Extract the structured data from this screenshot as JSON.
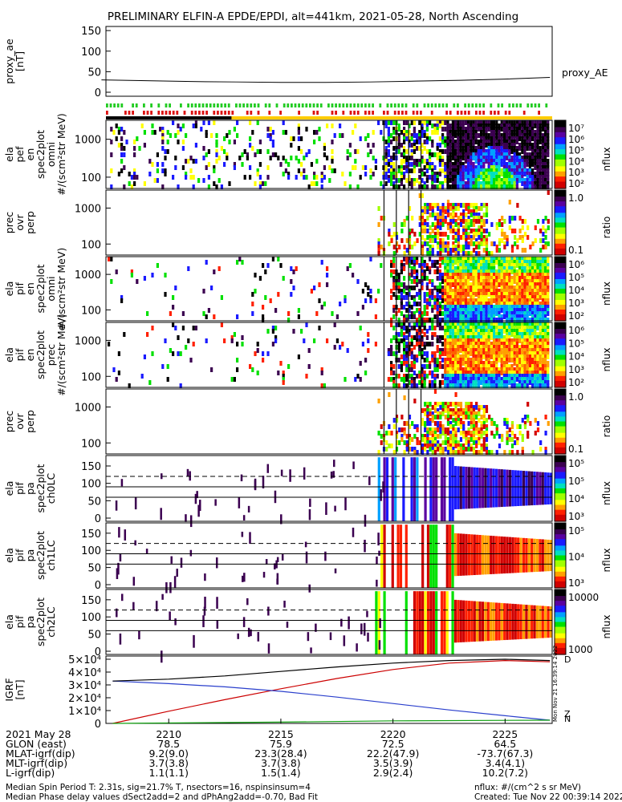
{
  "title": "PRELIMINARY ELFIN-A EPDE/EPDI, alt=441km, 2021-05-28, North Ascending",
  "chart_data": [
    {
      "id": "proxy_ae",
      "type": "line",
      "ylabel": [
        "proxy_ae",
        "[nT]"
      ],
      "yticks": [
        "150",
        "100",
        "50",
        "0"
      ],
      "ylim": [
        0,
        160
      ],
      "series": [
        {
          "name": "proxy_AE",
          "x": [
            2207,
            2209,
            2211,
            2213,
            2215,
            2217,
            2219,
            2221,
            2223,
            2225,
            2227
          ],
          "y": [
            30,
            28,
            26,
            25,
            24,
            24,
            25,
            27,
            29,
            32,
            36
          ]
        }
      ]
    },
    {
      "id": "elx_pef_en_spec2plot_omni",
      "type": "heatmap",
      "ylabel": [
        "ela",
        "pef",
        "en",
        "spec2plot",
        "omni",
        "#/(scm²str MeV)"
      ],
      "yticks": [
        "1000",
        "100"
      ],
      "yscale": "log",
      "colorbar": {
        "label": "nflux",
        "ticks": [
          "10⁷",
          "10⁶",
          "10⁵",
          "10⁴",
          "10³",
          "10²"
        ]
      }
    },
    {
      "id": "prec_ovr_perp_1",
      "type": "heatmap",
      "ylabel": [
        "prec",
        "ovr",
        "perp"
      ],
      "yticks": [
        "1000",
        "100"
      ],
      "yscale": "log",
      "colorbar": {
        "label": "ratio",
        "ticks": [
          "1.0",
          "0.1"
        ]
      }
    },
    {
      "id": "elx_pif_en_spec2plot_omni",
      "type": "heatmap",
      "ylabel": [
        "ela",
        "pif",
        "en",
        "spec2plot",
        "omni",
        "#/(scm²str MeV)"
      ],
      "yticks": [
        "1000",
        "100"
      ],
      "yscale": "log",
      "colorbar": {
        "label": "nflux",
        "ticks": [
          "10⁶",
          "10⁵",
          "10⁴",
          "10³",
          "10²"
        ]
      }
    },
    {
      "id": "elx_pif_en_spec2plot_prec",
      "type": "heatmap",
      "ylabel": [
        "ela",
        "pif",
        "en",
        "spec2plot",
        "prec",
        "#/(scm²str MeV)"
      ],
      "yticks": [
        "1000",
        "100"
      ],
      "yscale": "log",
      "colorbar": {
        "label": "nflux",
        "ticks": [
          "10⁶",
          "10⁵",
          "10⁴",
          "10³",
          "10²"
        ]
      }
    },
    {
      "id": "prec_ovr_perp_2",
      "type": "heatmap",
      "ylabel": [
        "prec",
        "ovr",
        "perp"
      ],
      "yticks": [
        "1000",
        "100"
      ],
      "yscale": "log",
      "colorbar": {
        "label": "ratio",
        "ticks": [
          "1.0",
          "0.1"
        ]
      }
    },
    {
      "id": "pa_ch0LC",
      "type": "heatmap",
      "ylabel": [
        "ela",
        "pif",
        "pa",
        "spec2plot",
        "ch0LC"
      ],
      "yticks": [
        "150",
        "100",
        "50",
        "0"
      ],
      "ylim": [
        0,
        180
      ],
      "colorbar": {
        "label": "nflux",
        "ticks": [
          "10⁵",
          "10⁵",
          "10⁴",
          "10³"
        ]
      }
    },
    {
      "id": "pa_ch1LC",
      "type": "heatmap",
      "ylabel": [
        "ela",
        "pif",
        "pa",
        "spec2plot",
        "ch1LC"
      ],
      "yticks": [
        "150",
        "100",
        "50",
        "0"
      ],
      "ylim": [
        0,
        180
      ],
      "colorbar": {
        "label": "nflux",
        "ticks": [
          "10⁵",
          "10⁴",
          "10³"
        ]
      }
    },
    {
      "id": "pa_ch2LC",
      "type": "heatmap",
      "ylabel": [
        "ela",
        "pif",
        "pa",
        "spec2plot",
        "ch2LC"
      ],
      "yticks": [
        "150",
        "100",
        "50",
        "0"
      ],
      "ylim": [
        0,
        180
      ],
      "colorbar": {
        "label": "nflux",
        "ticks": [
          "10000",
          "1000"
        ]
      }
    },
    {
      "id": "igrf",
      "type": "line",
      "ylabel": [
        "IGRF",
        "[nT]"
      ],
      "yticks": [
        "5×10⁴",
        "4×10⁴",
        "3×10⁴",
        "2×10⁴",
        "1×10⁴",
        "0"
      ],
      "ylim": [
        0,
        50000
      ],
      "series": [
        {
          "name": "D",
          "color": "#cc0000",
          "x": [
            2207.5,
            2210,
            2212.5,
            2215,
            2217.5,
            2220,
            2222.5,
            2225,
            2227
          ],
          "y": [
            0,
            9500,
            18500,
            27000,
            35000,
            42000,
            47000,
            49000,
            48000
          ]
        },
        {
          "name": "N",
          "color": "#2a3fcc",
          "x": [
            2207.5,
            2210,
            2212.5,
            2215,
            2217.5,
            2220,
            2222.5,
            2225,
            2227
          ],
          "y": [
            33000,
            31000,
            28500,
            25000,
            20500,
            15500,
            10500,
            6000,
            2500
          ]
        },
        {
          "name": "",
          "color": "#000000",
          "x": [
            2207.5,
            2210,
            2212.5,
            2215,
            2217.5,
            2220,
            2222.5,
            2225,
            2227
          ],
          "y": [
            33000,
            34500,
            37000,
            40500,
            44000,
            47000,
            49000,
            50000,
            49000
          ]
        },
        {
          "name": "Z",
          "color": "#10a010",
          "x": [
            2207.5,
            2215,
            2220,
            2227
          ],
          "y": [
            0,
            1000,
            2000,
            2500
          ]
        }
      ]
    }
  ],
  "xaxis": {
    "rows": [
      {
        "label": "2021 May 28",
        "values": [
          "2210",
          "2215",
          "2220",
          "2225"
        ]
      },
      {
        "label": "GLON (east)",
        "values": [
          "78.5",
          "75.9",
          "72.5",
          "64.5"
        ]
      },
      {
        "label": "MLAT-igrf(dip)",
        "values": [
          "9.2(9.0)",
          "23.3(28.4)",
          "22.2(47.9)",
          "-73.7(67.3)"
        ]
      },
      {
        "label": "MLT-igrf(dip)",
        "values": [
          "3.7(3.8)",
          "3.7(3.8)",
          "3.5(3.9)",
          "3.4(4.1)"
        ]
      },
      {
        "label": "L-igrf(dip)",
        "values": [
          "1.1(1.1)",
          "1.5(1.4)",
          "2.9(2.4)",
          "10.2(7.2)"
        ]
      }
    ]
  },
  "footer": {
    "line1": "Median Spin Period T: 2.31s, sig=21.7% T, nsectors=16, nspinsinsum=4",
    "line2": "Median Phase delay values dSect2add=2 and dPhAng2add=-0.70, Bad Fit",
    "nflux_units": "nflux: #/(cm^2 s sr MeV)",
    "created": "Created: Tue Nov 22 00:39:14 2022",
    "side_stamp": "Mon Nov 21 16:39:14 2022"
  },
  "colors": {
    "spectrum": [
      "#000000",
      "#3b0050",
      "#5a00a0",
      "#1a1aff",
      "#00a0ff",
      "#00e0c0",
      "#00e000",
      "#a0ff00",
      "#ffff00",
      "#ffa000",
      "#ff2000",
      "#d00000"
    ],
    "quality_green": "#22cc22",
    "quality_red": "#dd1111",
    "quality_yellow": "#ffcc00"
  }
}
